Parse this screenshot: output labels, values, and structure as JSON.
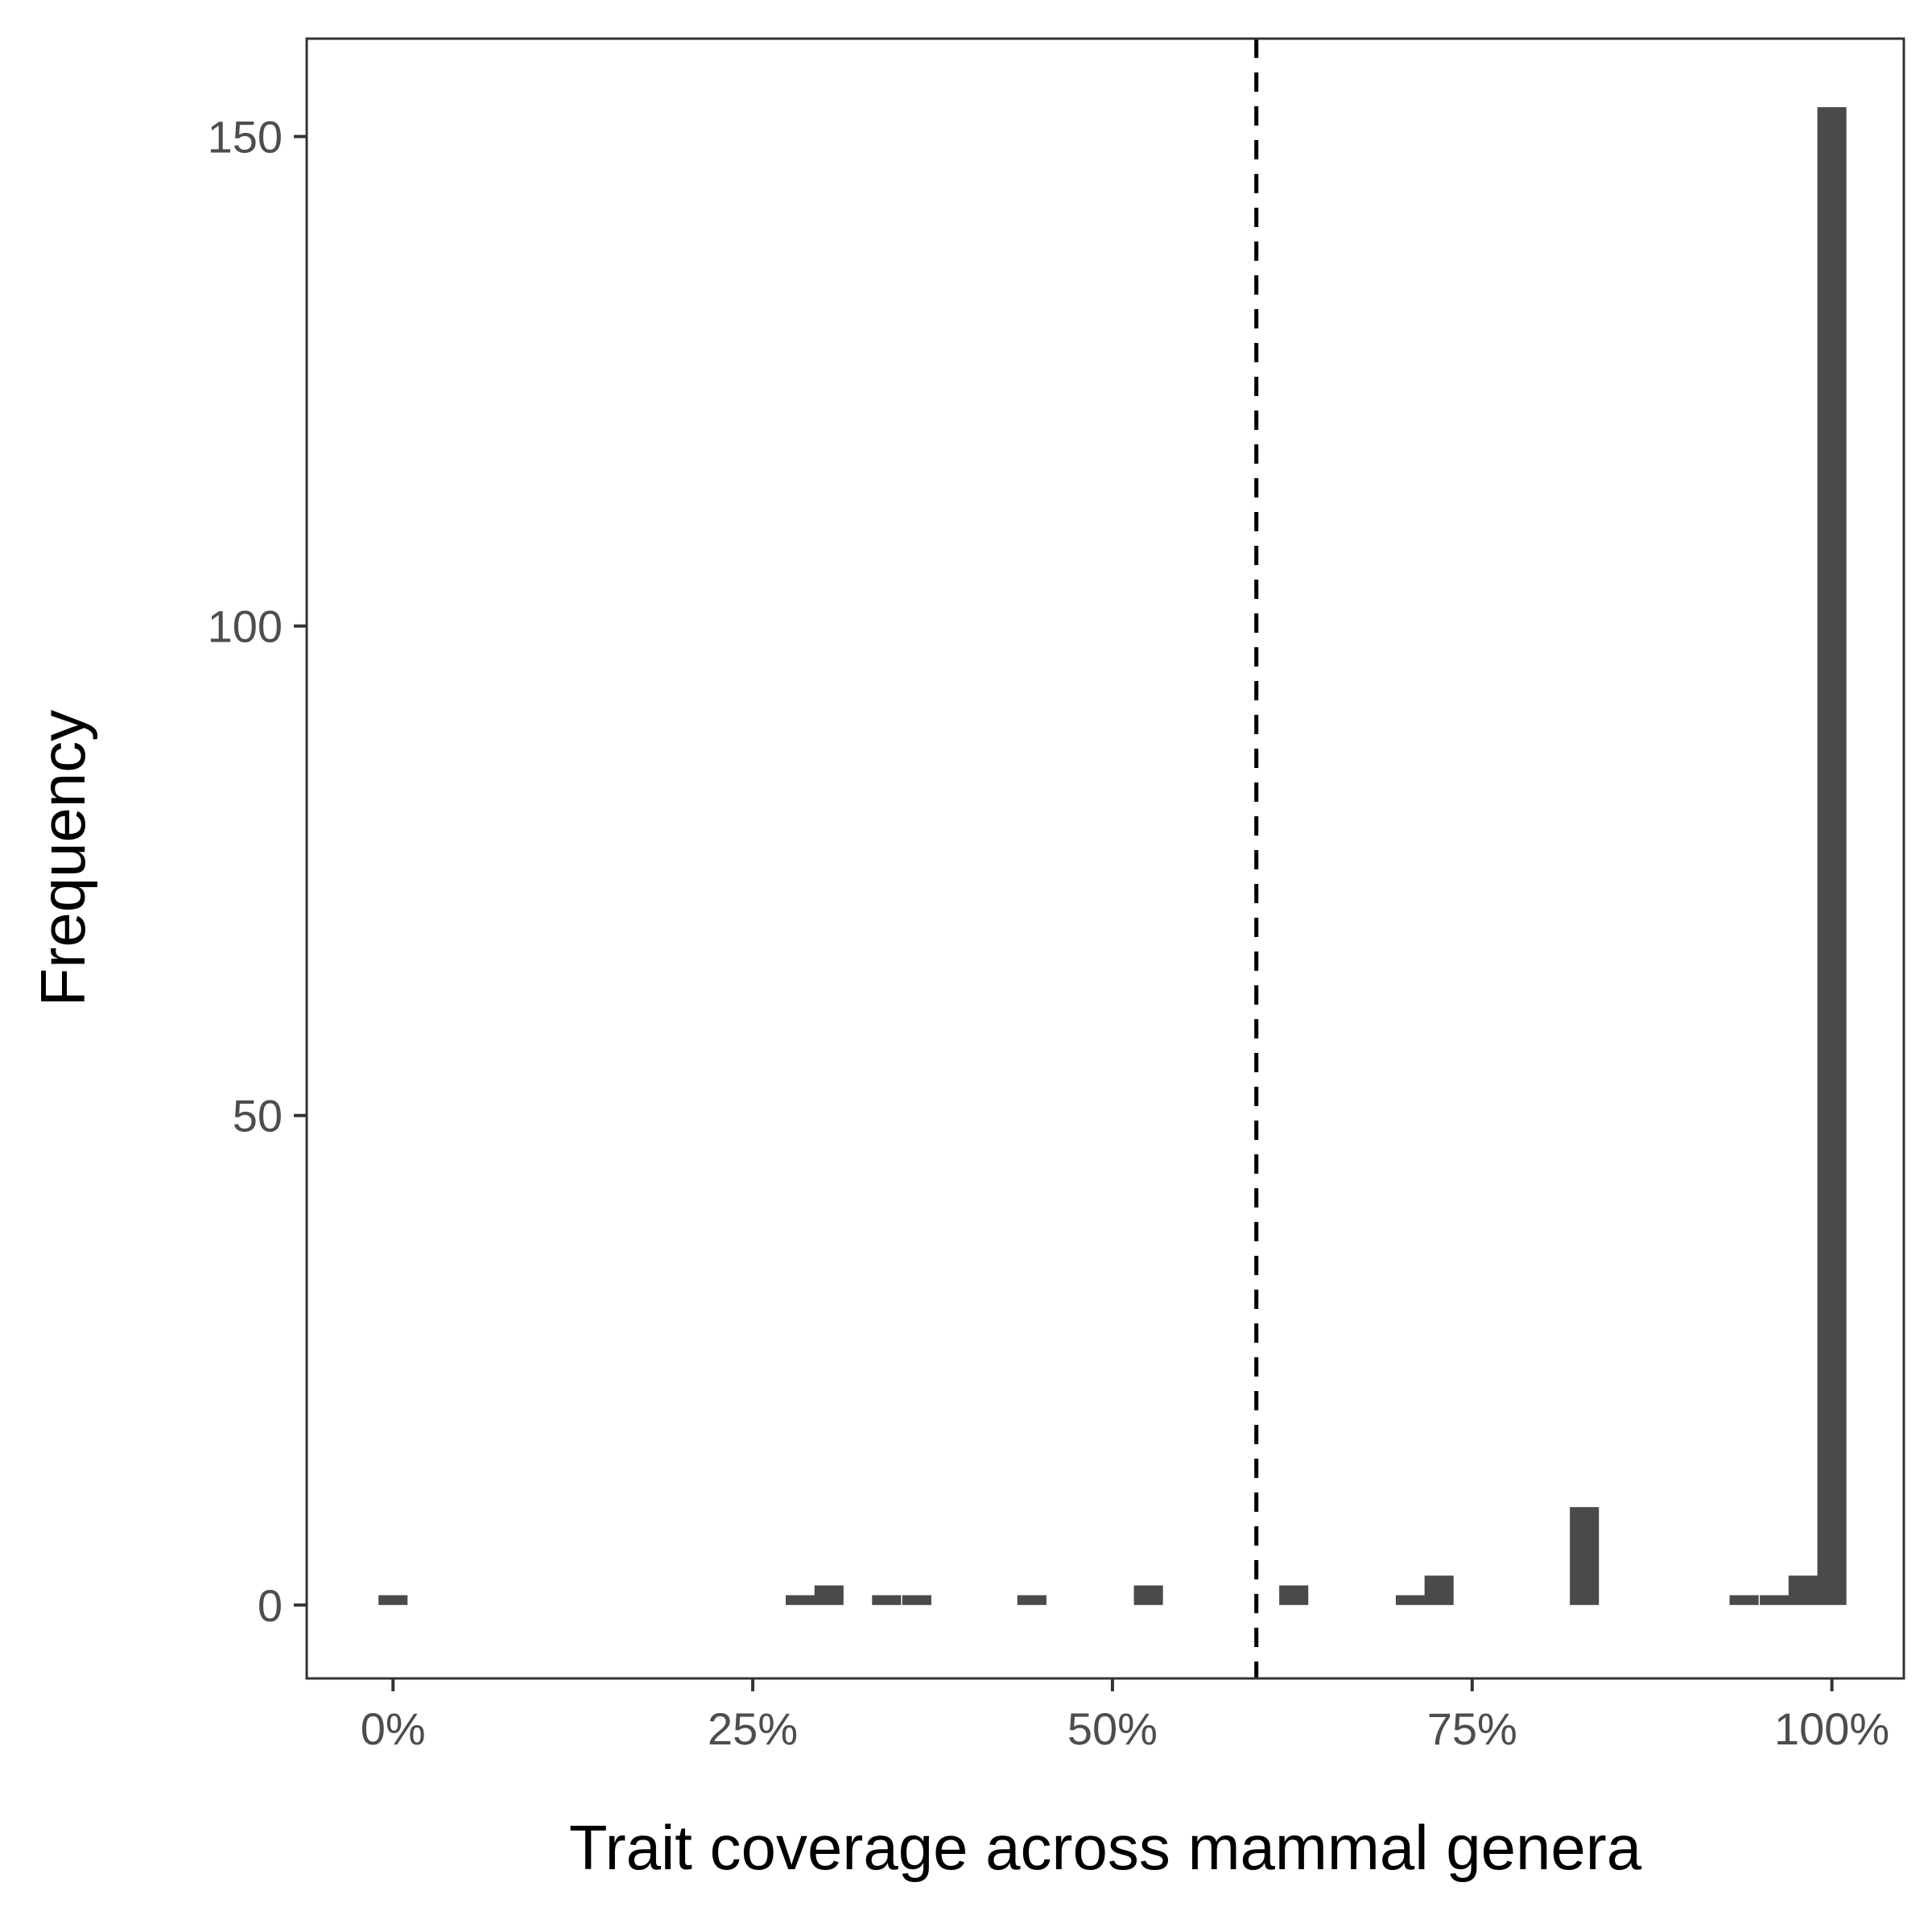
{
  "chart_data": {
    "type": "bar",
    "xlabel": "Trait coverage across mammal genera",
    "ylabel": "Frequency",
    "x_unit": "percent",
    "xlim": [
      -6,
      105
    ],
    "ylim": [
      -7.5,
      160
    ],
    "x_ticks": [
      {
        "value": 0,
        "label": "0%"
      },
      {
        "value": 25,
        "label": "25%"
      },
      {
        "value": 50,
        "label": "50%"
      },
      {
        "value": 75,
        "label": "75%"
      },
      {
        "value": 100,
        "label": "100%"
      }
    ],
    "y_ticks": [
      {
        "value": 0,
        "label": "0"
      },
      {
        "value": 50,
        "label": "50"
      },
      {
        "value": 100,
        "label": "100"
      },
      {
        "value": 150,
        "label": "150"
      }
    ],
    "bin_width": 2.02,
    "bins": [
      {
        "x": 0.0,
        "count": 1
      },
      {
        "x": 28.3,
        "count": 1
      },
      {
        "x": 30.3,
        "count": 2
      },
      {
        "x": 34.3,
        "count": 1
      },
      {
        "x": 36.4,
        "count": 1
      },
      {
        "x": 44.4,
        "count": 1
      },
      {
        "x": 52.5,
        "count": 2
      },
      {
        "x": 62.6,
        "count": 2
      },
      {
        "x": 70.7,
        "count": 1
      },
      {
        "x": 72.7,
        "count": 3
      },
      {
        "x": 82.8,
        "count": 10
      },
      {
        "x": 93.9,
        "count": 1
      },
      {
        "x": 96.0,
        "count": 1
      },
      {
        "x": 98.0,
        "count": 3
      },
      {
        "x": 100.0,
        "count": 153
      }
    ],
    "reference_line": {
      "x": 60,
      "style": "dashed"
    },
    "bar_color": "#4a4a4a",
    "grid": false,
    "legend": "none"
  }
}
